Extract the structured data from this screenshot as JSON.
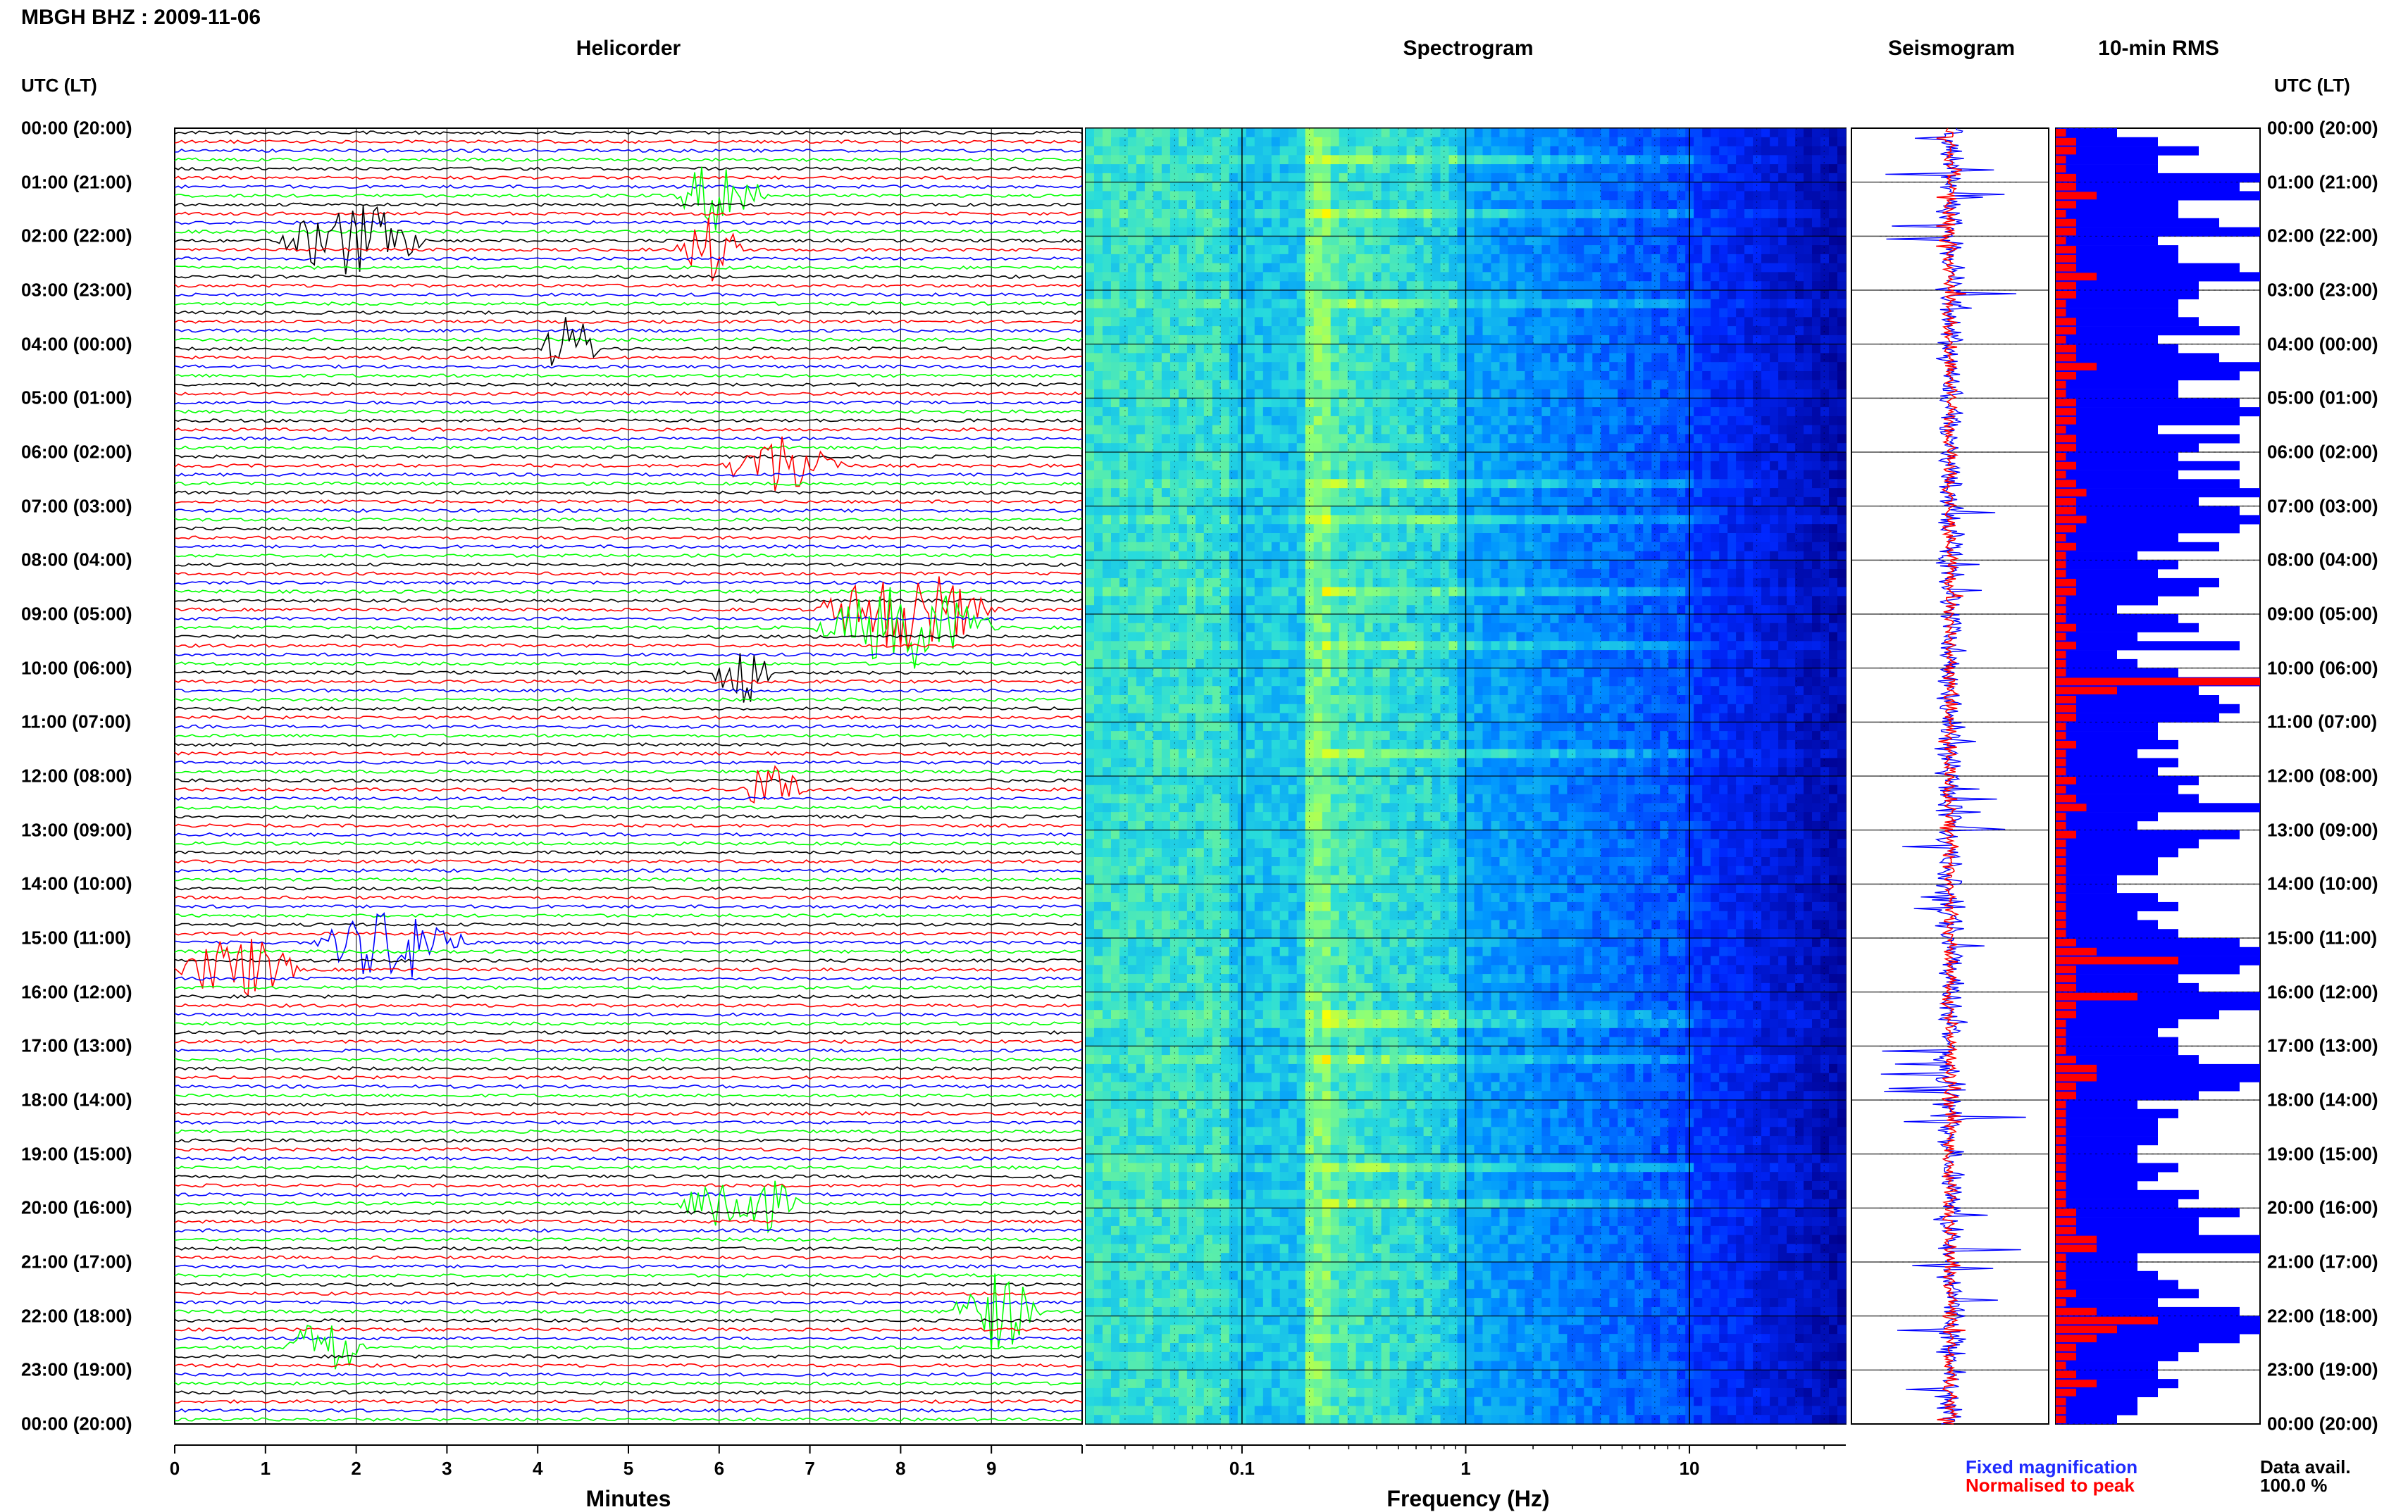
{
  "title": "MBGH BHZ : 2009-11-06",
  "time_header": "UTC (LT)",
  "panels": {
    "helicorder": "Helicorder",
    "spectrogram": "Spectrogram",
    "seismogram": "Seismogram",
    "rms": "10-min RMS"
  },
  "axes": {
    "minutes_label": "Minutes",
    "frequency_label": "Frequency (Hz)",
    "minute_ticks": [
      "0",
      "1",
      "2",
      "3",
      "4",
      "5",
      "6",
      "7",
      "8",
      "9"
    ],
    "frequency_ticks": [
      "0.1",
      "1",
      "10"
    ]
  },
  "time_labels": [
    "00:00 (20:00)",
    "01:00 (21:00)",
    "02:00 (22:00)",
    "03:00 (23:00)",
    "04:00 (00:00)",
    "05:00 (01:00)",
    "06:00 (02:00)",
    "07:00 (03:00)",
    "08:00 (04:00)",
    "09:00 (05:00)",
    "10:00 (06:00)",
    "11:00 (07:00)",
    "12:00 (08:00)",
    "13:00 (09:00)",
    "14:00 (10:00)",
    "15:00 (11:00)",
    "16:00 (12:00)",
    "17:00 (13:00)",
    "18:00 (14:00)",
    "19:00 (15:00)",
    "20:00 (16:00)",
    "21:00 (17:00)",
    "22:00 (18:00)",
    "23:00 (19:00)",
    "00:00 (20:00)"
  ],
  "legend": {
    "fixed": "Fixed magnification",
    "normalised": "Normalised to peak"
  },
  "data_avail": {
    "label": "Data avail.",
    "value": "100.0 %"
  },
  "colors": {
    "trace_cycle": [
      "#000000",
      "#ff0000",
      "#0000ff",
      "#00ff00"
    ],
    "rms_fixed": "#0000ff",
    "rms_normalised": "#ff0000",
    "spectrogram_low": "#0000a0",
    "spectrogram_high": "#ffff00"
  },
  "chart_data": [
    {
      "type": "line",
      "panel": "Helicorder",
      "xlabel": "Minutes",
      "xlim": [
        0,
        10
      ],
      "rows_per_hour": 6,
      "hours": 24,
      "events": [
        {
          "hour": 1,
          "row": 1,
          "start_min": 5.5,
          "end_min": 7.0,
          "amp": 0.9
        },
        {
          "hour": 2,
          "row": 0,
          "start_min": 1.1,
          "end_min": 3.5,
          "amp": 0.9
        },
        {
          "hour": 2,
          "row": 1,
          "start_min": 5.5,
          "end_min": 6.6,
          "amp": 0.8
        },
        {
          "hour": 4,
          "row": 0,
          "start_min": 4.0,
          "end_min": 5.0,
          "amp": 0.8
        },
        {
          "hour": 6,
          "row": 1,
          "start_min": 6.0,
          "end_min": 8.0,
          "amp": 0.8
        },
        {
          "hour": 8,
          "row": 5,
          "start_min": 7.0,
          "end_min": 10.0,
          "amp": 1.0
        },
        {
          "hour": 9,
          "row": 1,
          "start_min": 7.0,
          "end_min": 10.0,
          "amp": 1.0
        },
        {
          "hour": 10,
          "row": 0,
          "start_min": 5.9,
          "end_min": 6.9,
          "amp": 0.8
        },
        {
          "hour": 12,
          "row": 1,
          "start_min": 6.2,
          "end_min": 7.3,
          "amp": 0.6
        },
        {
          "hour": 15,
          "row": 0,
          "start_min": 1.5,
          "end_min": 4.0,
          "amp": 0.9
        },
        {
          "hour": 15,
          "row": 3,
          "start_min": 0,
          "end_min": 2.0,
          "amp": 0.8
        },
        {
          "hour": 19,
          "row": 5,
          "start_min": 5.5,
          "end_min": 7.5,
          "amp": 0.9
        },
        {
          "hour": 21,
          "row": 5,
          "start_min": 8.5,
          "end_min": 10.0,
          "amp": 1.0
        },
        {
          "hour": 22,
          "row": 3,
          "start_min": 1.2,
          "end_min": 2.5,
          "amp": 0.8
        }
      ]
    },
    {
      "type": "heatmap",
      "panel": "Spectrogram",
      "xlabel": "Frequency (Hz)",
      "xscale": "log",
      "xlim": [
        0.02,
        50
      ],
      "ylim_hours": [
        0,
        24
      ]
    },
    {
      "type": "line",
      "panel": "Seismogram",
      "series": [
        {
          "name": "Fixed magnification",
          "color": "#0000ff"
        },
        {
          "name": "Normalised to peak",
          "color": "#ff0000"
        }
      ]
    },
    {
      "type": "bar",
      "panel": "10-min RMS",
      "bins_per_hour": 6,
      "series": [
        {
          "name": "Fixed magnification",
          "color": "#0000ff",
          "values": [
            0.3,
            0.5,
            0.7,
            0.5,
            0.5,
            1.0,
            0.9,
            1.0,
            0.6,
            0.6,
            0.8,
            1.0,
            0.5,
            0.6,
            0.6,
            0.9,
            1.0,
            0.7,
            0.7,
            0.6,
            0.6,
            0.7,
            0.9,
            0.5,
            0.6,
            0.8,
            1.0,
            0.9,
            0.6,
            0.6,
            0.9,
            1.0,
            0.9,
            0.5,
            0.9,
            0.7,
            0.6,
            0.9,
            0.6,
            0.9,
            1.0,
            0.7,
            0.9,
            1.0,
            0.9,
            0.6,
            0.8,
            0.4,
            0.6,
            0.5,
            0.8,
            0.7,
            0.5,
            0.3,
            0.6,
            0.7,
            0.4,
            0.9,
            0.3,
            0.4,
            0.6,
            1.0,
            0.7,
            0.8,
            0.9,
            0.8,
            0.5,
            0.5,
            0.6,
            0.4,
            0.6,
            0.5,
            0.7,
            0.6,
            0.7,
            1.0,
            0.5,
            0.4,
            0.9,
            0.7,
            0.6,
            0.5,
            0.5,
            0.3,
            0.3,
            0.5,
            0.6,
            0.4,
            0.5,
            0.6,
            0.9,
            1.0,
            1.0,
            0.9,
            0.6,
            0.7,
            1.0,
            1.0,
            0.8,
            0.6,
            0.5,
            0.6,
            0.6,
            0.7,
            1.0,
            1.0,
            0.9,
            0.7,
            0.4,
            0.6,
            0.5,
            0.5,
            0.5,
            0.4,
            0.4,
            0.6,
            0.5,
            0.4,
            0.7,
            0.6,
            0.9,
            0.7,
            0.7,
            1.0,
            1.0,
            0.4,
            0.4,
            0.5,
            0.6,
            0.7,
            0.5,
            0.9,
            1.0,
            1.0,
            0.9,
            0.7,
            0.6,
            0.5,
            0.5,
            0.6,
            0.5,
            0.4,
            0.4,
            0.3
          ]
        },
        {
          "name": "Normalised to peak",
          "color": "#ff0000",
          "values": [
            0.05,
            0.1,
            0.1,
            0.05,
            0.05,
            0.1,
            0.1,
            0.2,
            0.1,
            0.05,
            0.1,
            0.1,
            0.05,
            0.1,
            0.1,
            0.1,
            0.2,
            0.1,
            0.1,
            0.05,
            0.05,
            0.1,
            0.1,
            0.05,
            0.1,
            0.1,
            0.2,
            0.1,
            0.05,
            0.05,
            0.1,
            0.1,
            0.1,
            0.05,
            0.1,
            0.1,
            0.05,
            0.1,
            0.05,
            0.1,
            0.15,
            0.1,
            0.1,
            0.15,
            0.1,
            0.05,
            0.1,
            0.05,
            0.05,
            0.05,
            0.1,
            0.1,
            0.05,
            0.05,
            0.05,
            0.1,
            0.05,
            0.1,
            0.05,
            0.05,
            0.05,
            1.0,
            0.3,
            0.1,
            0.1,
            0.1,
            0.05,
            0.05,
            0.1,
            0.05,
            0.05,
            0.05,
            0.1,
            0.05,
            0.1,
            0.15,
            0.05,
            0.05,
            0.1,
            0.05,
            0.05,
            0.05,
            0.05,
            0.05,
            0.05,
            0.05,
            0.05,
            0.05,
            0.05,
            0.05,
            0.1,
            0.2,
            0.6,
            0.1,
            0.1,
            0.1,
            0.4,
            0.1,
            0.1,
            0.05,
            0.05,
            0.05,
            0.05,
            0.1,
            0.2,
            0.2,
            0.1,
            0.1,
            0.05,
            0.05,
            0.05,
            0.05,
            0.05,
            0.05,
            0.05,
            0.05,
            0.05,
            0.05,
            0.05,
            0.05,
            0.1,
            0.1,
            0.1,
            0.2,
            0.2,
            0.05,
            0.05,
            0.05,
            0.05,
            0.1,
            0.05,
            0.2,
            0.5,
            0.3,
            0.2,
            0.1,
            0.1,
            0.05,
            0.1,
            0.2,
            0.1,
            0.05,
            0.05,
            0.05
          ]
        }
      ]
    }
  ]
}
